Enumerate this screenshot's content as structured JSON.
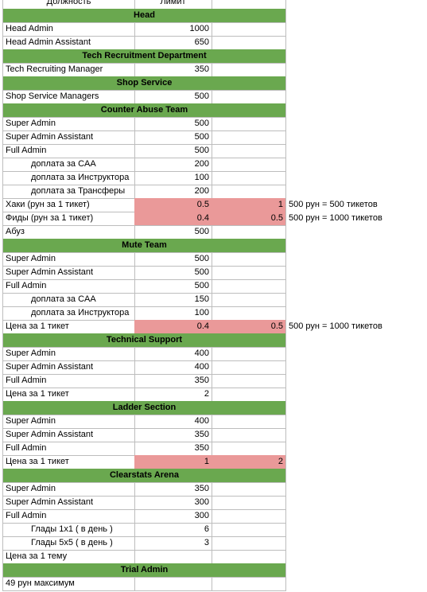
{
  "header": [
    "Должность",
    "Лимит"
  ],
  "rows": [
    {
      "section": "Head"
    },
    {
      "cells": [
        "Head Admin",
        1000
      ]
    },
    {
      "cells": [
        "Head Admin Assistant",
        650
      ]
    },
    {
      "section": "Tech Recruitment Department"
    },
    {
      "cells": [
        "Tech Recruiting Manager",
        350
      ]
    },
    {
      "section": "Shop Service"
    },
    {
      "cells": [
        "Shop Service Managers",
        500
      ]
    },
    {
      "section": "Counter Abuse Team"
    },
    {
      "cells": [
        "Super Admin",
        500
      ]
    },
    {
      "cells": [
        "Super Admin Assistant",
        500
      ]
    },
    {
      "cells": [
        "Full Admin",
        500
      ]
    },
    {
      "cells": [
        "доплата за CAA",
        200
      ],
      "indent": true
    },
    {
      "cells": [
        "доплата за Инструктора",
        100
      ],
      "indent": true
    },
    {
      "cells": [
        "доплата за Трансферы",
        200
      ],
      "indent": true
    },
    {
      "cells": [
        "Хаки (рун за 1 тикет)",
        0.5,
        1,
        "500 рун = 500 тикетов"
      ],
      "highlight": true
    },
    {
      "cells": [
        "Фиды (рун за 1 тикет)",
        0.4,
        0.5,
        "500 рун = 1000 тикетов"
      ],
      "highlight": true
    },
    {
      "cells": [
        "Абуз",
        500
      ]
    },
    {
      "section": "Mute Team"
    },
    {
      "cells": [
        "Super Admin",
        500
      ]
    },
    {
      "cells": [
        "Super Admin Assistant",
        500
      ]
    },
    {
      "cells": [
        "Full Admin",
        500
      ]
    },
    {
      "cells": [
        "доплата за CAA",
        150
      ],
      "indent": true
    },
    {
      "cells": [
        "доплата за Инструктора",
        100
      ],
      "indent": true
    },
    {
      "cells": [
        "Цена за 1 тикет",
        0.4,
        0.5,
        "500 рун = 1000 тикетов"
      ],
      "highlight": true
    },
    {
      "section": "Technical Support"
    },
    {
      "cells": [
        "Super Admin",
        400
      ]
    },
    {
      "cells": [
        "Super Admin Assistant",
        400
      ]
    },
    {
      "cells": [
        "Full Admin",
        350
      ]
    },
    {
      "cells": [
        "Цена за 1 тикет",
        2
      ]
    },
    {
      "section": "Ladder Section"
    },
    {
      "cells": [
        "Super Admin",
        400
      ]
    },
    {
      "cells": [
        "Super Admin Assistant",
        350
      ]
    },
    {
      "cells": [
        "Full Admin",
        350
      ]
    },
    {
      "cells": [
        "Цена за 1 тикет",
        1,
        2
      ],
      "highlight": true
    },
    {
      "section": "Clearstats Arena"
    },
    {
      "cells": [
        "Super Admin",
        350
      ]
    },
    {
      "cells": [
        "Super Admin Assistant",
        300
      ]
    },
    {
      "cells": [
        "Full Admin",
        300
      ]
    },
    {
      "cells": [
        "Глады 1x1 ( в день )",
        6
      ],
      "indent": true
    },
    {
      "cells": [
        "Глады 5x5 ( в день )",
        3
      ],
      "indent": true
    },
    {
      "cells": [
        "Цена за 1 тему"
      ]
    },
    {
      "section": "Trial Admin"
    },
    {
      "cells": [
        "49 рун максимум"
      ]
    }
  ]
}
